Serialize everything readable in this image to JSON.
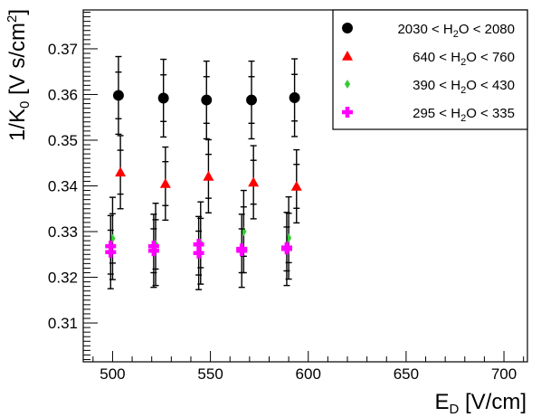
{
  "chart_data": {
    "type": "scatter",
    "title": "",
    "xlabel": "E",
    "xlabel_sub": "D",
    "xlabel_unit": " [V/cm]",
    "ylabel_main": "1/K",
    "ylabel_sub": "0",
    "ylabel_unit": " [V s/cm",
    "ylabel_sup": "2",
    "ylabel_end": "]",
    "xlim": [
      485,
      712
    ],
    "ylim": [
      0.3015,
      0.3785
    ],
    "x_ticks": [
      500,
      550,
      600,
      650,
      700
    ],
    "x_tick_labels": [
      "500",
      "550",
      "600",
      "650",
      "700"
    ],
    "y_ticks": [
      0.31,
      0.32,
      0.33,
      0.34,
      0.35,
      0.36,
      0.37
    ],
    "y_tick_labels": [
      "0.31",
      "0.32",
      "0.33",
      "0.34",
      "0.35",
      "0.36",
      "0.37"
    ],
    "grid": false,
    "legend_position": "top-right",
    "series": [
      {
        "legend_parts": [
          "2030 < H",
          "2",
          "O < 2080"
        ],
        "color": "#000000",
        "marker": "circle",
        "points": [
          {
            "x": 503,
            "y": 0.3598,
            "err_low": 0.0085,
            "err_high": 0.0085
          },
          {
            "x": 526,
            "y": 0.3592,
            "err_low": 0.0085,
            "err_high": 0.0085
          },
          {
            "x": 548,
            "y": 0.3588,
            "err_low": 0.0085,
            "err_high": 0.0085
          },
          {
            "x": 571,
            "y": 0.3588,
            "err_low": 0.0085,
            "err_high": 0.0085
          },
          {
            "x": 593,
            "y": 0.3593,
            "err_low": 0.0085,
            "err_high": 0.0085
          }
        ]
      },
      {
        "legend_parts": [
          "640 < H",
          "2",
          "O <  760"
        ],
        "color": "#ff0000",
        "marker": "triangle",
        "points": [
          {
            "x": 504,
            "y": 0.343,
            "err_low": 0.008,
            "err_high": 0.008
          },
          {
            "x": 527,
            "y": 0.3405,
            "err_low": 0.008,
            "err_high": 0.008
          },
          {
            "x": 549,
            "y": 0.3421,
            "err_low": 0.008,
            "err_high": 0.008
          },
          {
            "x": 572,
            "y": 0.3408,
            "err_low": 0.008,
            "err_high": 0.008
          },
          {
            "x": 594,
            "y": 0.3399,
            "err_low": 0.008,
            "err_high": 0.008
          }
        ]
      },
      {
        "legend_parts": [
          "390 < H",
          "2",
          "O <  430"
        ],
        "color": "#33cc33",
        "marker": "diamond",
        "points": [
          {
            "x": 500,
            "y": 0.3285,
            "err_low": 0.009,
            "err_high": 0.009
          },
          {
            "x": 522,
            "y": 0.3272,
            "err_low": 0.009,
            "err_high": 0.009
          },
          {
            "x": 545,
            "y": 0.3275,
            "err_low": 0.009,
            "err_high": 0.009
          },
          {
            "x": 567,
            "y": 0.33,
            "err_low": 0.009,
            "err_high": 0.009
          },
          {
            "x": 590,
            "y": 0.3286,
            "err_low": 0.009,
            "err_high": 0.009
          }
        ]
      },
      {
        "legend_parts": [
          "295 < H",
          "2",
          "O <  335"
        ],
        "color": "#ff00ff",
        "marker": "cross",
        "points": [
          {
            "x": 499,
            "y": 0.3255,
            "err_low": 0.008,
            "err_high": 0.008,
            "y2": 0.3268
          },
          {
            "x": 521,
            "y": 0.3258,
            "err_low": 0.008,
            "err_high": 0.008,
            "y2": 0.3268
          },
          {
            "x": 544,
            "y": 0.3253,
            "err_low": 0.008,
            "err_high": 0.008,
            "y2": 0.3272
          },
          {
            "x": 566,
            "y": 0.3258,
            "err_low": 0.008,
            "err_high": 0.008,
            "y2": 0.3262
          },
          {
            "x": 589,
            "y": 0.3262,
            "err_low": 0.008,
            "err_high": 0.008,
            "y2": 0.3265
          }
        ]
      }
    ]
  }
}
